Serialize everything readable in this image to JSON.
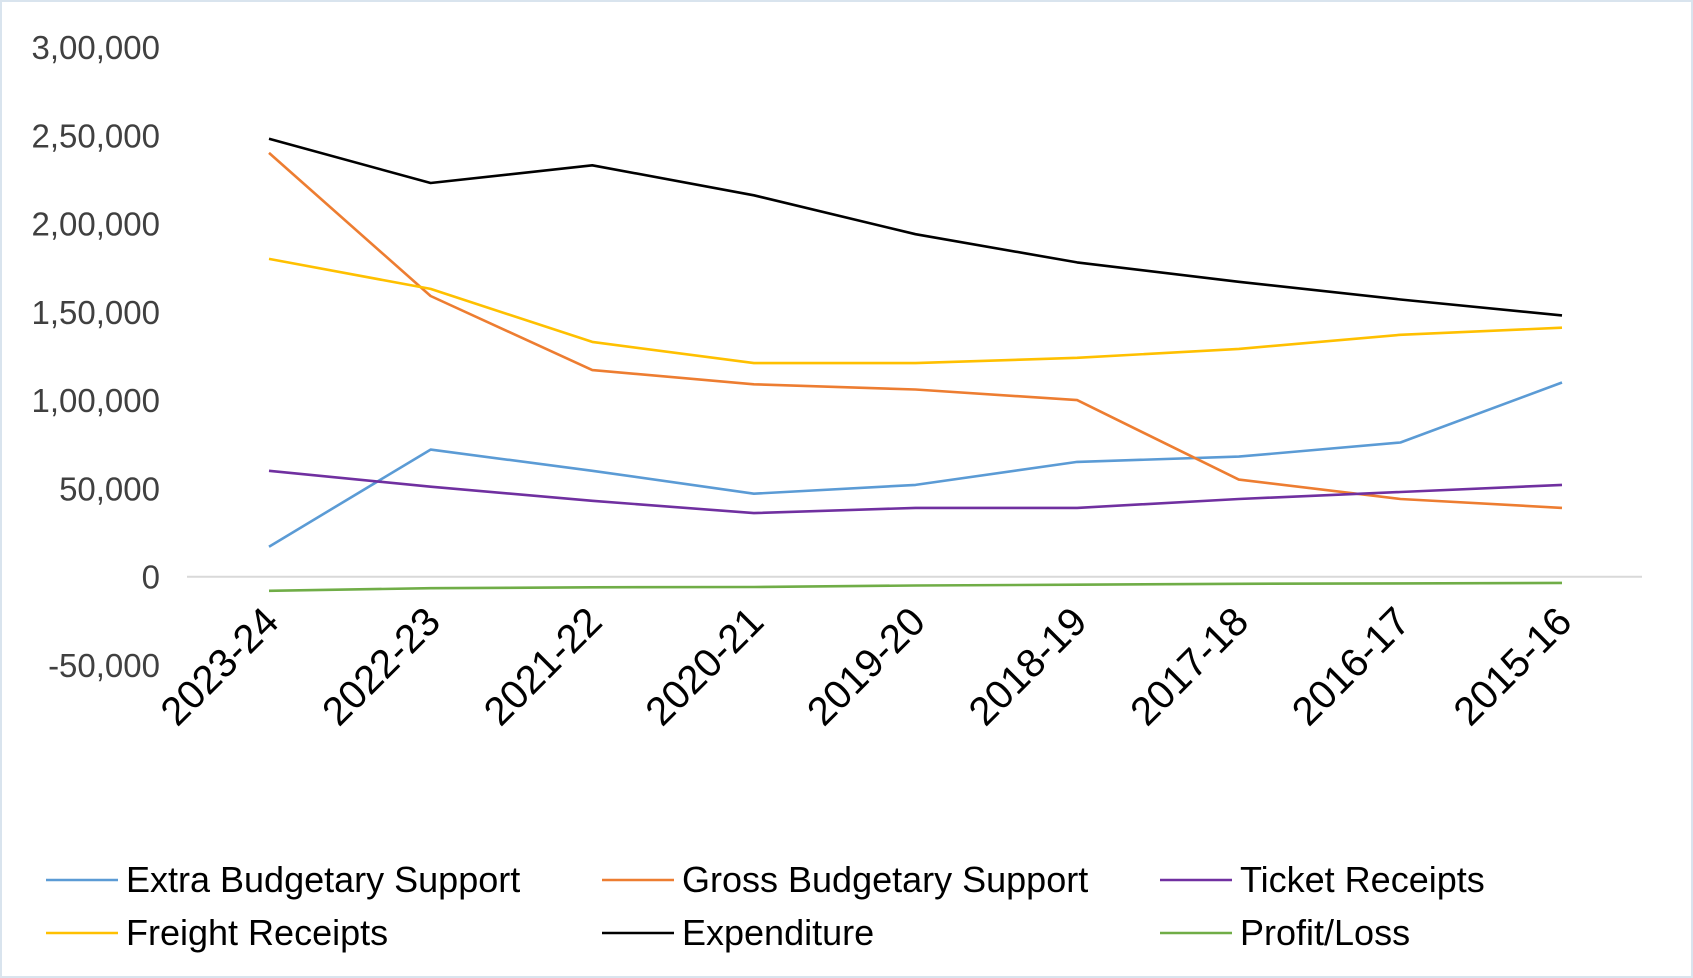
{
  "chart_data": {
    "type": "line",
    "title": "",
    "xlabel": "",
    "ylabel": "",
    "categories": [
      "2023-24",
      "2022-23",
      "2021-22",
      "2020-21",
      "2019-20",
      "2018-19",
      "2017-18",
      "2016-17",
      "2015-16"
    ],
    "ylim": [
      -50000,
      300000
    ],
    "yticks": [
      300000,
      250000,
      200000,
      150000,
      100000,
      50000,
      0,
      -50000
    ],
    "ytick_labels": [
      "3,00,000",
      "2,50,000",
      "2,00,000",
      "1,50,000",
      "1,00,000",
      "50,000",
      "0",
      "-50,000"
    ],
    "grid": false,
    "legend_position": "bottom",
    "series": [
      {
        "name": "Extra Budgetary Support",
        "color": "#5b9bd5",
        "values": [
          17000,
          72000,
          60000,
          47000,
          52000,
          65000,
          68000,
          76000,
          110000
        ]
      },
      {
        "name": "Gross Budgetary Support",
        "color": "#ed7d31",
        "values": [
          240000,
          159000,
          117000,
          109000,
          106000,
          100000,
          55000,
          44000,
          39000
        ]
      },
      {
        "name": "Ticket Receipts",
        "color": "#7030a0",
        "values": [
          60000,
          51000,
          43000,
          36000,
          39000,
          39000,
          44000,
          48000,
          52000
        ]
      },
      {
        "name": "Freight Receipts",
        "color": "#ffc000",
        "values": [
          180000,
          163000,
          133000,
          121000,
          121000,
          124000,
          129000,
          137000,
          141000
        ]
      },
      {
        "name": "Expenditure",
        "color": "#000000",
        "values": [
          248000,
          223000,
          233000,
          216000,
          194000,
          178000,
          167000,
          157000,
          148000
        ]
      },
      {
        "name": "Profit/Loss",
        "color": "#70ad47",
        "values": [
          -8000,
          -6500,
          -6000,
          -5800,
          -5000,
          -4500,
          -4000,
          -3800,
          -3500
        ]
      }
    ]
  }
}
